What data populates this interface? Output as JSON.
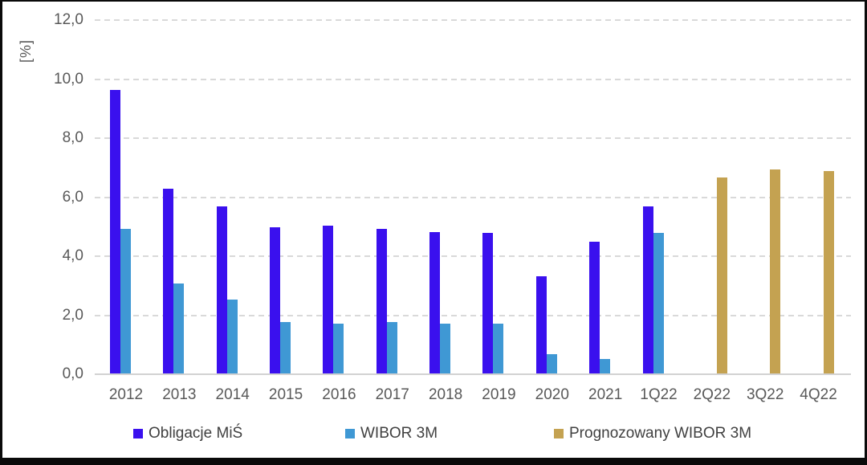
{
  "chart_data": {
    "type": "bar",
    "title": "",
    "ylabel": "[%]",
    "xlabel": "",
    "ylim": [
      0,
      12
    ],
    "ytick_step": 2,
    "ytick_labels": [
      "0,0",
      "2,0",
      "4,0",
      "6,0",
      "8,0",
      "10,0",
      "12,0"
    ],
    "grid": "horizontal-dashed",
    "legend_position": "bottom",
    "categories": [
      "2012",
      "2013",
      "2014",
      "2015",
      "2016",
      "2017",
      "2018",
      "2019",
      "2020",
      "2021",
      "1Q22",
      "2Q22",
      "3Q22",
      "4Q22"
    ],
    "series": [
      {
        "name": "Obligacje MiŚ",
        "color": "#3a10ee",
        "values": [
          9.6,
          6.25,
          5.65,
          4.95,
          5.0,
          4.9,
          4.8,
          4.75,
          3.3,
          4.45,
          5.65,
          null,
          null,
          null
        ]
      },
      {
        "name": "WIBOR 3M",
        "color": "#3f98d4",
        "values": [
          4.9,
          3.05,
          2.5,
          1.75,
          1.7,
          1.75,
          1.7,
          1.7,
          0.65,
          0.5,
          4.75,
          null,
          null,
          null
        ]
      },
      {
        "name": "Prognozowany WIBOR 3M",
        "color": "#c4a251",
        "values": [
          null,
          null,
          null,
          null,
          null,
          null,
          null,
          null,
          null,
          null,
          null,
          6.65,
          6.9,
          6.85
        ]
      }
    ]
  },
  "colors": {
    "gridline": "#d9d9d9",
    "axis_text": "#595959",
    "legend_text": "#404040",
    "frame_border": "#0a0a0a",
    "background": "#ffffff"
  }
}
